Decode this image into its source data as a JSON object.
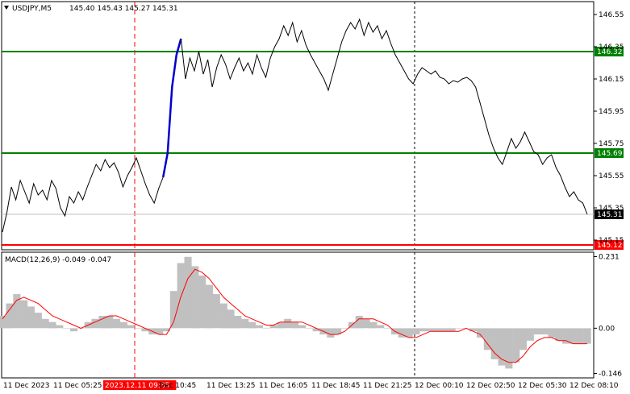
{
  "header": {
    "symbol": "USDJPY,M5",
    "ohlc": "145.40 145.43 145.27 145.31",
    "macd_label": "MACD(12,26,9) -0.049 -0.047"
  },
  "colors": {
    "price_line": "#000000",
    "impulse": "#0000cc",
    "level_green": "#008000",
    "level_red": "#ff0000",
    "macd_hist": "#c0c0c0",
    "macd_signal": "#ff0000",
    "grid": "#000000"
  },
  "chart_data": [
    {
      "type": "line",
      "name": "price",
      "y_ticks": [
        "146.55",
        "146.35",
        "146.15",
        "145.95",
        "145.75",
        "145.55",
        "145.35",
        "145.15"
      ],
      "ylim": [
        145.1,
        146.62
      ],
      "levels": [
        {
          "value": 146.32,
          "label": "146.32",
          "color": "#008000"
        },
        {
          "value": 145.69,
          "label": "145.69",
          "color": "#008000"
        },
        {
          "value": 145.12,
          "label": "145.12",
          "color": "#ff0000"
        }
      ],
      "current": {
        "value": 145.31,
        "label": "145.31"
      },
      "x_labels": [
        "11 Dec 2023",
        "11 Dec 05:25",
        "2023.12.11 09:35",
        "Dec 10:45",
        "11 Dec 13:25",
        "11 Dec 16:05",
        "11 Dec 18:45",
        "11 Dec 21:25",
        "12 Dec 00:10",
        "12 Dec 02:50",
        "12 Dec 05:30",
        "12 Dec 08:10"
      ],
      "highlight_x_label": "2023.12.11 09:35",
      "values": [
        145.2,
        145.32,
        145.48,
        145.4,
        145.52,
        145.45,
        145.38,
        145.5,
        145.43,
        145.46,
        145.4,
        145.52,
        145.47,
        145.35,
        145.3,
        145.42,
        145.38,
        145.45,
        145.4,
        145.48,
        145.55,
        145.62,
        145.58,
        145.65,
        145.6,
        145.63,
        145.57,
        145.48,
        145.55,
        145.6,
        145.66,
        145.58,
        145.5,
        145.43,
        145.38,
        145.47,
        145.54,
        145.69,
        146.1,
        146.3,
        146.4,
        146.15,
        146.28,
        146.2,
        146.32,
        146.18,
        146.27,
        146.1,
        146.22,
        146.3,
        146.24,
        146.15,
        146.22,
        146.28,
        146.2,
        146.25,
        146.18,
        146.3,
        146.22,
        146.16,
        146.28,
        146.35,
        146.4,
        146.48,
        146.42,
        146.5,
        146.38,
        146.45,
        146.36,
        146.3,
        146.25,
        146.2,
        146.15,
        146.08,
        146.18,
        146.28,
        146.38,
        146.45,
        146.5,
        146.46,
        146.52,
        146.42,
        146.5,
        146.44,
        146.48,
        146.4,
        146.45,
        146.37,
        146.3,
        146.25,
        146.2,
        146.15,
        146.12,
        146.18,
        146.22,
        146.2,
        146.18,
        146.2,
        146.16,
        146.15,
        146.12,
        146.14,
        146.13,
        146.15,
        146.16,
        146.14,
        146.1,
        146.0,
        145.9,
        145.8,
        145.72,
        145.66,
        145.62,
        145.7,
        145.78,
        145.72,
        145.76,
        145.82,
        145.76,
        145.7,
        145.68,
        145.62,
        145.66,
        145.68,
        145.6,
        145.55,
        145.48,
        145.42,
        145.45,
        145.4,
        145.38,
        145.31
      ]
    },
    {
      "type": "bar",
      "name": "MACD(12,26,9)",
      "y_ticks": [
        "0.231",
        "0.00",
        "-0.146"
      ],
      "ylim": [
        -0.155,
        0.24
      ],
      "histogram": [
        0.04,
        0.08,
        0.11,
        0.09,
        0.07,
        0.05,
        0.03,
        0.02,
        0.01,
        0.0,
        -0.01,
        0.0,
        0.02,
        0.03,
        0.04,
        0.04,
        0.03,
        0.02,
        0.01,
        0.0,
        -0.01,
        -0.02,
        -0.02,
        -0.01,
        0.12,
        0.21,
        0.23,
        0.2,
        0.17,
        0.14,
        0.11,
        0.08,
        0.06,
        0.04,
        0.03,
        0.02,
        0.01,
        0.0,
        0.01,
        0.02,
        0.03,
        0.02,
        0.01,
        0.0,
        -0.01,
        -0.02,
        -0.03,
        -0.02,
        0.0,
        0.02,
        0.04,
        0.03,
        0.02,
        0.01,
        0.0,
        -0.02,
        -0.03,
        -0.03,
        -0.02,
        -0.01,
        -0.01,
        -0.01,
        -0.01,
        -0.01,
        0.0,
        0.0,
        -0.01,
        -0.03,
        -0.07,
        -0.1,
        -0.12,
        -0.13,
        -0.11,
        -0.07,
        -0.04,
        -0.02,
        -0.02,
        -0.03,
        -0.04,
        -0.05,
        -0.05,
        -0.05,
        -0.05
      ],
      "signal": [
        0.03,
        0.06,
        0.09,
        0.1,
        0.09,
        0.08,
        0.06,
        0.04,
        0.03,
        0.02,
        0.01,
        0.0,
        0.01,
        0.02,
        0.03,
        0.04,
        0.04,
        0.03,
        0.02,
        0.01,
        0.0,
        -0.01,
        -0.02,
        -0.02,
        0.02,
        0.1,
        0.16,
        0.19,
        0.18,
        0.16,
        0.13,
        0.1,
        0.08,
        0.06,
        0.04,
        0.03,
        0.02,
        0.01,
        0.01,
        0.02,
        0.02,
        0.02,
        0.02,
        0.01,
        0.0,
        -0.01,
        -0.02,
        -0.02,
        -0.01,
        0.01,
        0.03,
        0.03,
        0.03,
        0.02,
        0.01,
        -0.01,
        -0.02,
        -0.03,
        -0.03,
        -0.02,
        -0.01,
        -0.01,
        -0.01,
        -0.01,
        -0.01,
        0.0,
        -0.01,
        -0.02,
        -0.05,
        -0.08,
        -0.1,
        -0.11,
        -0.11,
        -0.09,
        -0.06,
        -0.04,
        -0.03,
        -0.03,
        -0.04,
        -0.04,
        -0.05,
        -0.05,
        -0.05
      ]
    }
  ]
}
